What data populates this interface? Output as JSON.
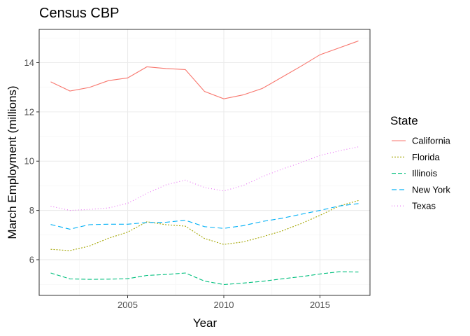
{
  "chart_data": {
    "type": "line",
    "title": "Census CBP",
    "xlabel": "Year",
    "ylabel": "March Employment (millions)",
    "xlim": [
      2000.4,
      2017.6
    ],
    "ylim": [
      4.55,
      15.35
    ],
    "x_ticks": [
      2005,
      2010,
      2015
    ],
    "x_tick_labels": [
      "2005",
      "2010",
      "2015"
    ],
    "y_ticks": [
      6,
      8,
      10,
      12,
      14
    ],
    "y_tick_labels": [
      "6",
      "8",
      "10",
      "12",
      "14"
    ],
    "grid": true,
    "legend_title": "State",
    "legend_position": "right",
    "x": [
      2001,
      2002,
      2003,
      2004,
      2005,
      2006,
      2007,
      2008,
      2009,
      2010,
      2011,
      2012,
      2013,
      2014,
      2015,
      2016,
      2017
    ],
    "series": [
      {
        "name": "California",
        "color": "#F8766D",
        "dash": "none",
        "values": [
          13.22,
          12.85,
          12.99,
          13.27,
          13.38,
          13.83,
          13.76,
          13.72,
          12.83,
          12.53,
          12.69,
          12.95,
          13.4,
          13.85,
          14.32,
          14.6,
          14.88
        ]
      },
      {
        "name": "Florida",
        "color": "#A3A500",
        "dash": "2,2",
        "values": [
          6.42,
          6.37,
          6.55,
          6.87,
          7.12,
          7.54,
          7.42,
          7.36,
          6.86,
          6.62,
          6.72,
          6.93,
          7.16,
          7.46,
          7.8,
          8.18,
          8.4
        ]
      },
      {
        "name": "Illinois",
        "color": "#00BF7D",
        "dash": "6,3",
        "values": [
          5.46,
          5.22,
          5.2,
          5.21,
          5.23,
          5.36,
          5.4,
          5.46,
          5.13,
          4.99,
          5.05,
          5.12,
          5.22,
          5.31,
          5.42,
          5.51,
          5.5
        ]
      },
      {
        "name": "New York",
        "color": "#00B0F6",
        "dash": "7,4",
        "values": [
          7.43,
          7.24,
          7.42,
          7.44,
          7.44,
          7.51,
          7.52,
          7.6,
          7.34,
          7.27,
          7.38,
          7.55,
          7.68,
          7.84,
          8.0,
          8.18,
          8.28
        ]
      },
      {
        "name": "Texas",
        "color": "#E76BF3",
        "dash": "1,3",
        "values": [
          8.17,
          8.0,
          8.04,
          8.1,
          8.29,
          8.69,
          9.04,
          9.23,
          8.93,
          8.79,
          9.01,
          9.37,
          9.67,
          9.94,
          10.23,
          10.42,
          10.58
        ]
      }
    ]
  }
}
